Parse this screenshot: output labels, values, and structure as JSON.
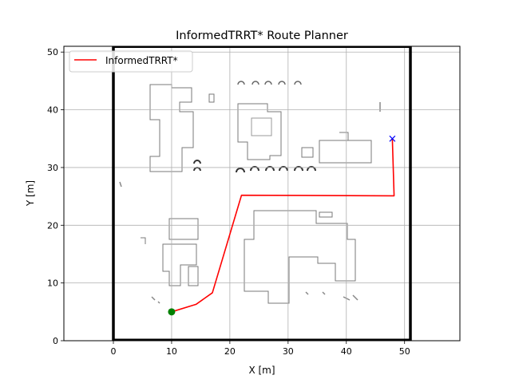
{
  "chart_data": {
    "type": "line",
    "title": "InformedTRRT* Route Planner",
    "xlabel": "X [m]",
    "ylabel": "Y [m]",
    "xlim": [
      -8.5,
      59.5
    ],
    "ylim": [
      0,
      51
    ],
    "xticks": [
      0,
      10,
      20,
      30,
      40,
      50
    ],
    "yticks": [
      0,
      10,
      20,
      30,
      40,
      50
    ],
    "grid": true,
    "legend_position": "top-left",
    "series": [
      {
        "name": "InformedTRRT*",
        "color": "#ff0000",
        "x": [
          10,
          14.2,
          17,
          22,
          48.2,
          47.9
        ],
        "y": [
          5,
          6.3,
          8.3,
          25.2,
          25.1,
          35
        ]
      }
    ],
    "start": {
      "x": 10,
      "y": 5,
      "color": "#008000"
    },
    "goal": {
      "x": 47.9,
      "y": 35,
      "color": "#0000ff"
    },
    "map_boundary": {
      "x": [
        0,
        51
      ],
      "y": [
        0,
        51
      ]
    },
    "obstacle_map": "grayscale occupancy map with building outlines"
  }
}
